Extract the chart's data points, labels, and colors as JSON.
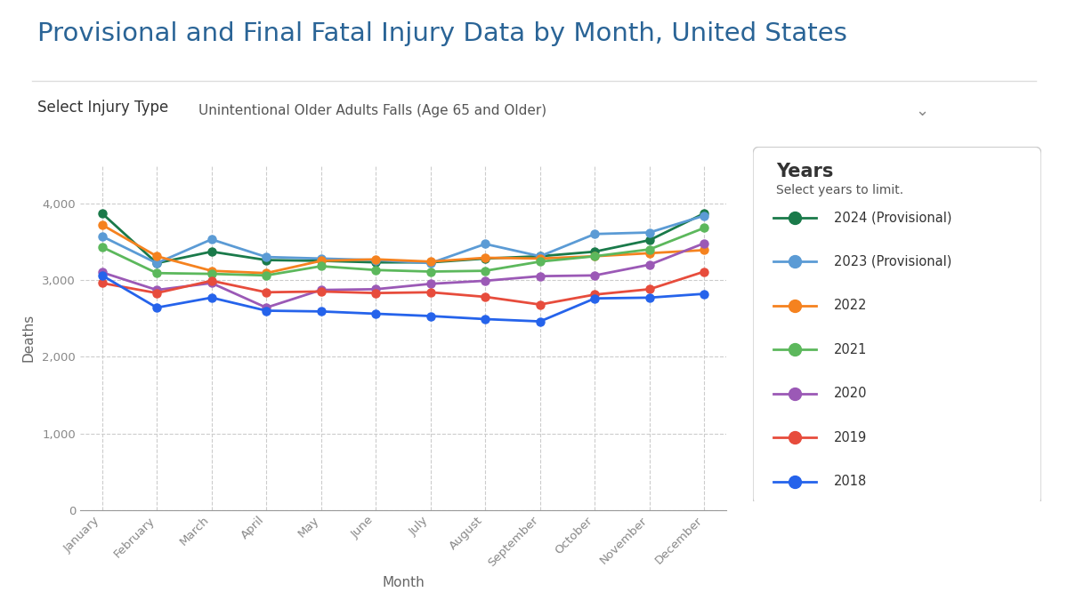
{
  "title": "Provisional and Final Fatal Injury Data by Month, United States",
  "subtitle_label": "Select Injury Type",
  "dropdown_label": "Unintentional Older Adults Falls (Age 65 and Older)",
  "xlabel": "Month",
  "ylabel": "Deaths",
  "months": [
    "January",
    "February",
    "March",
    "April",
    "May",
    "June",
    "July",
    "August",
    "September",
    "October",
    "November",
    "December"
  ],
  "series": [
    {
      "label": "2024 (Provisional)",
      "color": "#1a7a4a",
      "data": [
        3870,
        3220,
        3370,
        3260,
        3250,
        3230,
        3230,
        3280,
        3310,
        3370,
        3520,
        3870
      ]
    },
    {
      "label": "2023 (Provisional)",
      "color": "#5b9bd5",
      "data": [
        3570,
        3220,
        3530,
        3300,
        3280,
        3260,
        3220,
        3470,
        3310,
        3600,
        3620,
        3840
      ]
    },
    {
      "label": "2022",
      "color": "#f5821f",
      "data": [
        3720,
        3310,
        3120,
        3090,
        3250,
        3270,
        3240,
        3290,
        3280,
        3310,
        3350,
        3390
      ]
    },
    {
      "label": "2021",
      "color": "#5cb85c",
      "data": [
        3430,
        3090,
        3080,
        3060,
        3180,
        3130,
        3110,
        3120,
        3240,
        3310,
        3400,
        3680
      ]
    },
    {
      "label": "2020",
      "color": "#9b59b6",
      "data": [
        3100,
        2870,
        2960,
        2640,
        2870,
        2880,
        2950,
        2990,
        3050,
        3060,
        3200,
        3480
      ]
    },
    {
      "label": "2019",
      "color": "#e74c3c",
      "data": [
        2960,
        2830,
        2990,
        2840,
        2850,
        2830,
        2840,
        2780,
        2680,
        2810,
        2880,
        3110
      ]
    },
    {
      "label": "2018",
      "color": "#2563eb",
      "data": [
        3060,
        2640,
        2770,
        2600,
        2590,
        2560,
        2530,
        2490,
        2460,
        2760,
        2770,
        2820
      ]
    }
  ],
  "ylim": [
    0,
    4500
  ],
  "yticks": [
    0,
    1000,
    2000,
    3000,
    4000
  ],
  "background_color": "#ffffff",
  "legend_title": "Years",
  "legend_subtitle": "Select years to limit.",
  "title_color": "#2a6496",
  "axis_label_color": "#666666",
  "tick_color": "#888888",
  "grid_color": "#cccccc"
}
